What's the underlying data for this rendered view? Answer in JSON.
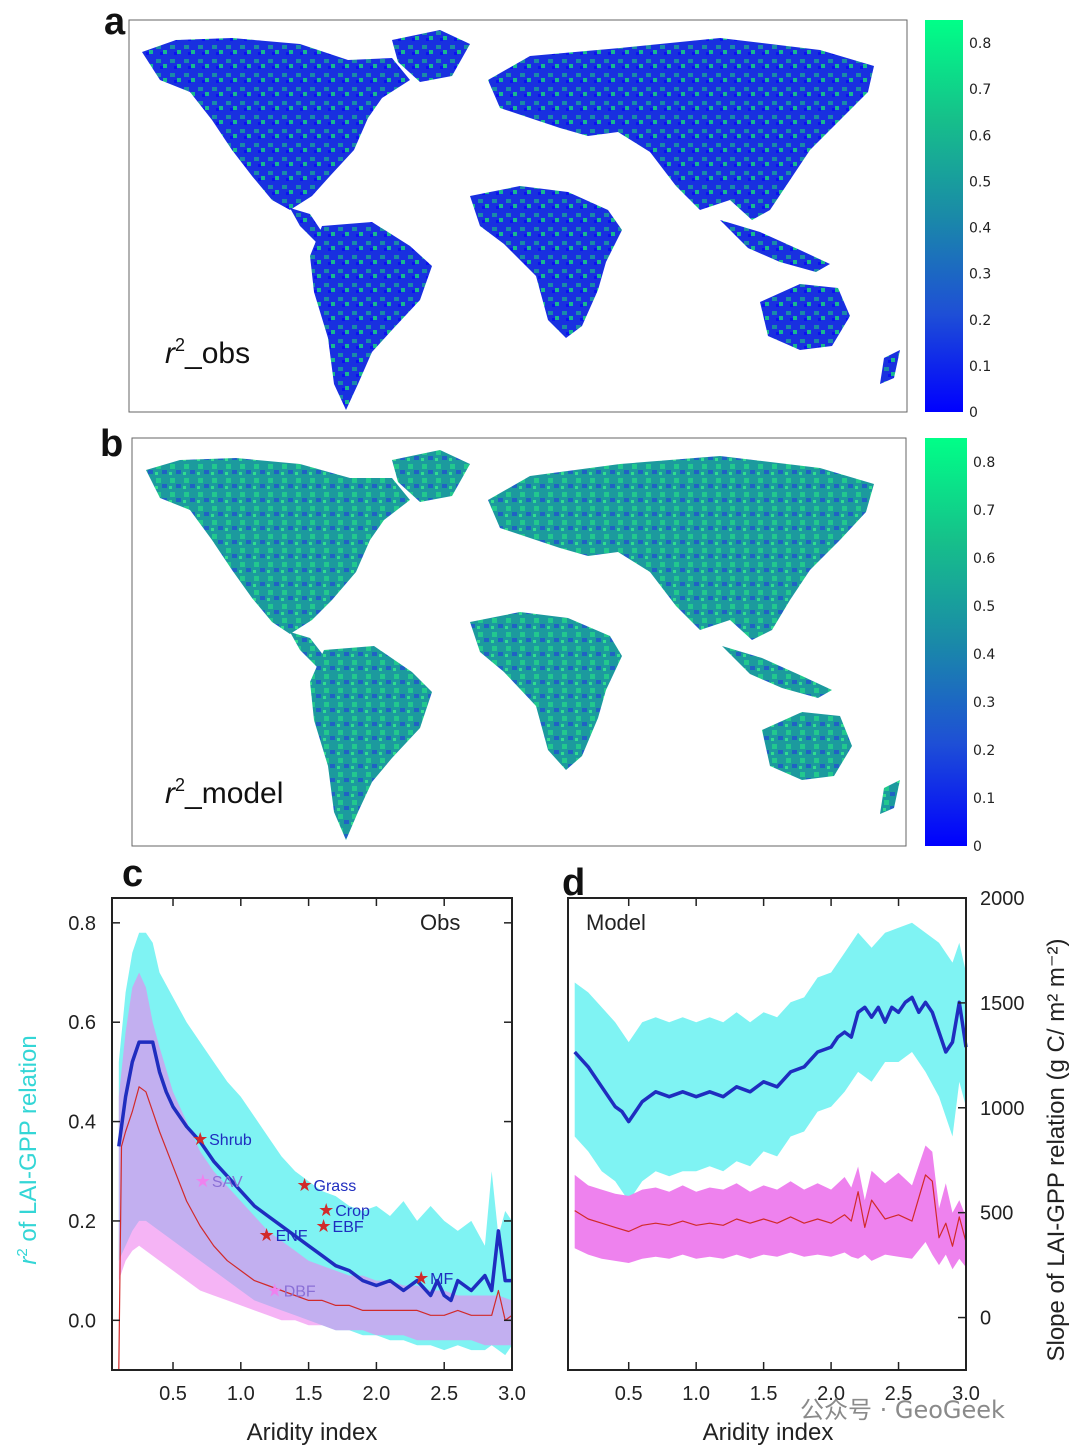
{
  "panels": {
    "a": {
      "letter": "a",
      "map_label_base": "r",
      "map_label_sup": "2",
      "map_label_suffix": "_obs",
      "colorbar_ticks": [
        "0",
        "0.1",
        "0.2",
        "0.3",
        "0.4",
        "0.5",
        "0.6",
        "0.7",
        "0.8"
      ],
      "colormap": [
        "#0000ff",
        "#1e4fd6",
        "#1a8aa8",
        "#16c08a",
        "#00ff88"
      ]
    },
    "b": {
      "letter": "b",
      "map_label_base": "r",
      "map_label_sup": "2",
      "map_label_suffix": "_model",
      "colorbar_ticks": [
        "0",
        "0.1",
        "0.2",
        "0.3",
        "0.4",
        "0.5",
        "0.6",
        "0.7",
        "0.8"
      ],
      "colormap": [
        "#0000ff",
        "#1e4fd6",
        "#1a8aa8",
        "#16c08a",
        "#00ff88"
      ]
    },
    "c": {
      "letter": "c",
      "corner_label": "Obs"
    },
    "d": {
      "letter": "d",
      "corner_label": "Model"
    }
  },
  "colors": {
    "r2_band": "#7ff3f3",
    "slope_band": "#ee82ee",
    "overlap_band": "#c69ae8",
    "r2_line": "#1f2dbf",
    "slope_line": "#d12a2a",
    "star": "#d12a2a",
    "ylabel_left": "#34d6d6",
    "ylabel_right": "#e878e8"
  },
  "chart_data": [
    {
      "id": "c",
      "type": "line",
      "xlabel": "Aridity index",
      "ylabel_left_base": "r",
      "ylabel_left_sup": "2",
      "ylabel_left_rest": " of LAI-GPP relation",
      "xlim": [
        0.05,
        3.0
      ],
      "ylim": [
        -0.1,
        0.85
      ],
      "xticks": [
        "0.5",
        "1.0",
        "1.5",
        "2.0",
        "2.5",
        "3.0"
      ],
      "yticks": [
        "0.0",
        "0.2",
        "0.4",
        "0.6",
        "0.8"
      ],
      "series": [
        {
          "role": "r2_band",
          "x": [
            0.1,
            0.15,
            0.2,
            0.25,
            0.3,
            0.35,
            0.4,
            0.5,
            0.6,
            0.7,
            0.8,
            0.9,
            1.0,
            1.1,
            1.2,
            1.3,
            1.4,
            1.5,
            1.6,
            1.7,
            1.8,
            1.9,
            2.0,
            2.1,
            2.2,
            2.3,
            2.4,
            2.5,
            2.6,
            2.7,
            2.8,
            2.85,
            2.9,
            2.95,
            3.0
          ],
          "upper": [
            0.52,
            0.66,
            0.74,
            0.78,
            0.78,
            0.76,
            0.7,
            0.65,
            0.6,
            0.56,
            0.52,
            0.48,
            0.45,
            0.41,
            0.37,
            0.33,
            0.3,
            0.28,
            0.26,
            0.25,
            0.23,
            0.22,
            0.23,
            0.21,
            0.24,
            0.2,
            0.23,
            0.2,
            0.18,
            0.2,
            0.15,
            0.3,
            0.17,
            0.22,
            0.2
          ],
          "lower": [
            0.12,
            0.15,
            0.18,
            0.2,
            0.2,
            0.19,
            0.18,
            0.16,
            0.14,
            0.12,
            0.1,
            0.08,
            0.06,
            0.04,
            0.03,
            0.02,
            0.01,
            0.0,
            -0.01,
            -0.02,
            -0.02,
            -0.03,
            -0.03,
            -0.04,
            -0.04,
            -0.05,
            -0.05,
            -0.06,
            -0.05,
            -0.06,
            -0.06,
            -0.05,
            -0.06,
            -0.07,
            -0.05
          ]
        },
        {
          "role": "slope_band",
          "x": [
            0.1,
            0.15,
            0.2,
            0.25,
            0.3,
            0.35,
            0.4,
            0.5,
            0.6,
            0.7,
            0.8,
            0.9,
            1.0,
            1.1,
            1.2,
            1.3,
            1.4,
            1.5,
            1.6,
            1.7,
            1.8,
            1.9,
            2.0,
            2.1,
            2.2,
            2.3,
            2.4,
            2.5,
            2.6,
            2.7,
            2.8,
            2.9,
            3.0
          ],
          "upper": [
            0.45,
            0.58,
            0.67,
            0.7,
            0.67,
            0.6,
            0.55,
            0.46,
            0.4,
            0.34,
            0.3,
            0.27,
            0.24,
            0.21,
            0.18,
            0.16,
            0.14,
            0.12,
            0.11,
            0.1,
            0.09,
            0.09,
            0.08,
            0.08,
            0.07,
            0.07,
            0.06,
            0.06,
            0.05,
            0.05,
            0.05,
            0.05,
            0.04
          ],
          "lower": [
            0.08,
            0.12,
            0.14,
            0.15,
            0.14,
            0.13,
            0.12,
            0.1,
            0.08,
            0.06,
            0.05,
            0.04,
            0.03,
            0.02,
            0.01,
            0.0,
            0.0,
            -0.01,
            -0.01,
            -0.02,
            -0.02,
            -0.02,
            -0.03,
            -0.03,
            -0.03,
            -0.04,
            -0.04,
            -0.04,
            -0.04,
            -0.04,
            -0.05,
            -0.05,
            -0.05
          ]
        },
        {
          "role": "r2_mean",
          "x": [
            0.1,
            0.15,
            0.2,
            0.25,
            0.3,
            0.35,
            0.4,
            0.45,
            0.5,
            0.55,
            0.6,
            0.7,
            0.8,
            0.9,
            1.0,
            1.1,
            1.2,
            1.3,
            1.4,
            1.5,
            1.6,
            1.7,
            1.8,
            1.9,
            2.0,
            2.1,
            2.2,
            2.3,
            2.4,
            2.45,
            2.5,
            2.55,
            2.6,
            2.7,
            2.8,
            2.85,
            2.9,
            2.95,
            3.0
          ],
          "y": [
            0.35,
            0.45,
            0.52,
            0.56,
            0.56,
            0.56,
            0.5,
            0.46,
            0.43,
            0.41,
            0.39,
            0.36,
            0.32,
            0.29,
            0.26,
            0.23,
            0.21,
            0.19,
            0.17,
            0.15,
            0.13,
            0.11,
            0.1,
            0.08,
            0.07,
            0.08,
            0.06,
            0.08,
            0.05,
            0.08,
            0.05,
            0.04,
            0.08,
            0.06,
            0.09,
            0.06,
            0.18,
            0.08,
            0.08
          ]
        },
        {
          "role": "slope_mean",
          "x": [
            0.1,
            0.12,
            0.15,
            0.2,
            0.25,
            0.3,
            0.35,
            0.4,
            0.5,
            0.6,
            0.7,
            0.8,
            0.9,
            1.0,
            1.1,
            1.2,
            1.3,
            1.4,
            1.5,
            1.6,
            1.7,
            1.8,
            1.9,
            2.0,
            2.1,
            2.2,
            2.3,
            2.4,
            2.5,
            2.6,
            2.7,
            2.8,
            2.85,
            2.9,
            2.95,
            3.0
          ],
          "y": [
            -0.1,
            0.35,
            0.38,
            0.42,
            0.47,
            0.46,
            0.42,
            0.38,
            0.31,
            0.24,
            0.19,
            0.15,
            0.12,
            0.1,
            0.08,
            0.07,
            0.06,
            0.05,
            0.04,
            0.04,
            0.03,
            0.03,
            0.02,
            0.02,
            0.02,
            0.02,
            0.02,
            0.01,
            0.01,
            0.02,
            0.01,
            0.01,
            0.01,
            0.06,
            0.0,
            0.01
          ]
        }
      ],
      "markers": [
        {
          "label": "Shrub",
          "x": 0.7,
          "y": 0.365,
          "label_color": "#1f2dbf",
          "star_color": "#d12a2a"
        },
        {
          "label": "SAV",
          "x": 0.72,
          "y": 0.28,
          "label_color": "#8a6fd6",
          "star_color": "#ee82ee"
        },
        {
          "label": "Grass",
          "x": 1.47,
          "y": 0.272,
          "label_color": "#1f2dbf",
          "star_color": "#d12a2a"
        },
        {
          "label": "Crop",
          "x": 1.63,
          "y": 0.222,
          "label_color": "#1f2dbf",
          "star_color": "#d12a2a"
        },
        {
          "label": "EBF",
          "x": 1.61,
          "y": 0.19,
          "label_color": "#1f2dbf",
          "star_color": "#d12a2a"
        },
        {
          "label": "ENF",
          "x": 1.19,
          "y": 0.172,
          "label_color": "#1f2dbf",
          "star_color": "#d12a2a"
        },
        {
          "label": "DBF",
          "x": 1.25,
          "y": 0.06,
          "label_color": "#8a6fd6",
          "star_color": "#ee82ee"
        },
        {
          "label": "MF",
          "x": 2.33,
          "y": 0.085,
          "label_color": "#1f2dbf",
          "star_color": "#d12a2a"
        }
      ]
    },
    {
      "id": "d",
      "type": "line",
      "xlabel": "Aridity index",
      "ylabel_right": "Slope of LAI-GPP relation (g C/ m² m⁻²)",
      "xlim": [
        0.05,
        3.0
      ],
      "ylim_left": [
        -0.1,
        0.85
      ],
      "ylim_right": [
        -250,
        2000
      ],
      "xticks": [
        "0.5",
        "1.0",
        "1.5",
        "2.0",
        "2.5",
        "3.0"
      ],
      "yticks_right": [
        "0",
        "500",
        "1000",
        "1500",
        "2000"
      ],
      "series": [
        {
          "role": "r2_band",
          "x": [
            0.1,
            0.2,
            0.3,
            0.4,
            0.5,
            0.55,
            0.6,
            0.7,
            0.8,
            0.9,
            1.0,
            1.1,
            1.2,
            1.3,
            1.4,
            1.5,
            1.6,
            1.7,
            1.8,
            1.9,
            2.0,
            2.1,
            2.2,
            2.3,
            2.4,
            2.5,
            2.6,
            2.7,
            2.8,
            2.9,
            2.95,
            3.0
          ],
          "upper": [
            0.68,
            0.66,
            0.63,
            0.6,
            0.56,
            0.58,
            0.6,
            0.61,
            0.6,
            0.61,
            0.6,
            0.61,
            0.6,
            0.62,
            0.6,
            0.62,
            0.61,
            0.64,
            0.65,
            0.69,
            0.7,
            0.74,
            0.78,
            0.75,
            0.78,
            0.79,
            0.8,
            0.78,
            0.76,
            0.72,
            0.76,
            0.7
          ],
          "lower": [
            0.37,
            0.34,
            0.3,
            0.28,
            0.24,
            0.26,
            0.28,
            0.3,
            0.29,
            0.3,
            0.3,
            0.31,
            0.3,
            0.32,
            0.31,
            0.34,
            0.33,
            0.37,
            0.38,
            0.42,
            0.43,
            0.46,
            0.5,
            0.48,
            0.52,
            0.52,
            0.54,
            0.5,
            0.45,
            0.37,
            0.48,
            0.43
          ]
        },
        {
          "role": "r2_mean",
          "x": [
            0.1,
            0.2,
            0.3,
            0.4,
            0.45,
            0.5,
            0.55,
            0.6,
            0.7,
            0.8,
            0.9,
            1.0,
            1.1,
            1.2,
            1.3,
            1.4,
            1.5,
            1.6,
            1.7,
            1.8,
            1.9,
            2.0,
            2.05,
            2.1,
            2.15,
            2.2,
            2.25,
            2.3,
            2.35,
            2.4,
            2.45,
            2.5,
            2.55,
            2.6,
            2.65,
            2.7,
            2.75,
            2.8,
            2.85,
            2.9,
            2.95,
            3.0
          ],
          "y": [
            0.54,
            0.51,
            0.47,
            0.43,
            0.42,
            0.4,
            0.42,
            0.44,
            0.46,
            0.45,
            0.46,
            0.45,
            0.46,
            0.45,
            0.47,
            0.46,
            0.48,
            0.47,
            0.5,
            0.51,
            0.54,
            0.55,
            0.57,
            0.58,
            0.57,
            0.62,
            0.63,
            0.61,
            0.63,
            0.6,
            0.63,
            0.62,
            0.64,
            0.65,
            0.62,
            0.64,
            0.62,
            0.58,
            0.54,
            0.56,
            0.64,
            0.55
          ]
        },
        {
          "role": "slope_band",
          "x": [
            0.1,
            0.2,
            0.3,
            0.4,
            0.5,
            0.6,
            0.7,
            0.8,
            0.9,
            1.0,
            1.1,
            1.2,
            1.3,
            1.4,
            1.5,
            1.6,
            1.7,
            1.8,
            1.9,
            2.0,
            2.1,
            2.15,
            2.2,
            2.25,
            2.3,
            2.4,
            2.5,
            2.6,
            2.7,
            2.75,
            2.8,
            2.85,
            2.9,
            2.95,
            3.0
          ],
          "upper": [
            680,
            630,
            610,
            590,
            580,
            610,
            620,
            600,
            630,
            600,
            620,
            610,
            640,
            600,
            630,
            610,
            650,
            610,
            640,
            610,
            670,
            620,
            720,
            560,
            700,
            640,
            690,
            630,
            820,
            790,
            520,
            640,
            500,
            560,
            480
          ],
          "lower": [
            330,
            300,
            280,
            270,
            260,
            280,
            290,
            280,
            300,
            280,
            290,
            280,
            300,
            280,
            300,
            290,
            310,
            290,
            300,
            290,
            310,
            290,
            280,
            300,
            270,
            300,
            290,
            280,
            360,
            300,
            250,
            300,
            230,
            280,
            240
          ]
        },
        {
          "role": "slope_mean",
          "x": [
            0.1,
            0.2,
            0.3,
            0.4,
            0.5,
            0.6,
            0.7,
            0.8,
            0.9,
            1.0,
            1.1,
            1.2,
            1.3,
            1.4,
            1.5,
            1.6,
            1.7,
            1.8,
            1.9,
            2.0,
            2.1,
            2.15,
            2.2,
            2.25,
            2.3,
            2.4,
            2.5,
            2.6,
            2.7,
            2.75,
            2.8,
            2.85,
            2.9,
            2.95,
            3.0
          ],
          "y": [
            510,
            470,
            450,
            430,
            410,
            440,
            450,
            440,
            460,
            440,
            450,
            440,
            470,
            450,
            470,
            450,
            480,
            450,
            470,
            450,
            490,
            460,
            600,
            430,
            560,
            470,
            490,
            460,
            680,
            650,
            380,
            450,
            340,
            480,
            360
          ]
        }
      ]
    }
  ],
  "watermark": "公众号 · GeoGeek"
}
